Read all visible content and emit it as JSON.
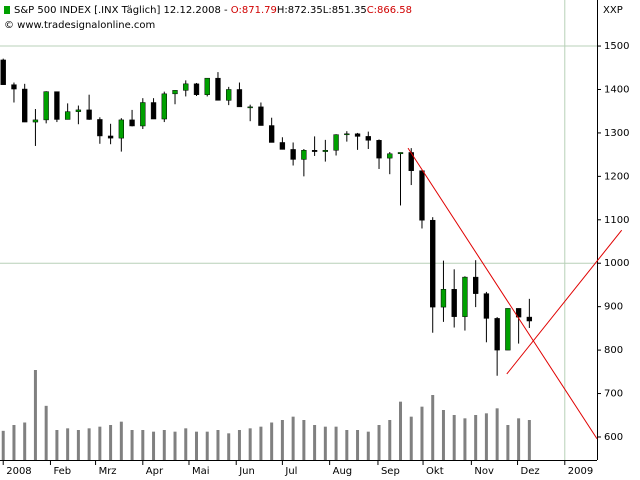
{
  "chart_data": {
    "type": "candlestick",
    "header": {
      "symbol": "S&P 500 INDEX [.INX  Täglich]",
      "date": "12.12.2008",
      "separator": "-",
      "ohlc": [
        {
          "text": "O:871.79",
          "color": "#d00000"
        },
        {
          "text": "H:872.35",
          "color": "#000000"
        },
        {
          "text": "L:851.35",
          "color": "#000000"
        },
        {
          "text": "C:866.58",
          "color": "#d00000"
        }
      ]
    },
    "copyright": "© www.tradesignalonline.com",
    "axis_label": "XXP",
    "x": [
      0,
      1,
      2,
      3,
      4,
      5,
      6,
      7,
      8,
      9,
      10,
      11,
      12,
      13,
      14,
      15,
      16,
      17,
      18,
      19,
      20,
      21,
      22,
      23,
      24,
      25,
      26,
      27,
      28,
      29,
      30,
      31,
      32,
      33,
      34,
      35,
      36,
      37,
      38,
      39,
      40,
      41,
      42,
      43,
      44,
      45,
      46,
      47,
      48,
      49
    ],
    "open": [
      1468,
      1411,
      1401,
      1325,
      1330,
      1395,
      1331,
      1349,
      1353,
      1331,
      1293,
      1288,
      1330,
      1316,
      1370,
      1332,
      1390,
      1398,
      1413,
      1388,
      1426,
      1375,
      1400,
      1360,
      1360,
      1317,
      1278,
      1262,
      1239,
      1260,
      1257,
      1260,
      1296,
      1298,
      1292,
      1283,
      1242,
      1252,
      1255,
      1213,
      1099,
      899,
      940,
      877,
      968,
      930,
      873,
      800,
      896,
      876
    ],
    "high": [
      1471,
      1416,
      1413,
      1355,
      1396,
      1395,
      1368,
      1363,
      1388,
      1336,
      1321,
      1334,
      1353,
      1380,
      1380,
      1395,
      1398,
      1421,
      1415,
      1426,
      1440,
      1406,
      1416,
      1365,
      1370,
      1335,
      1290,
      1278,
      1263,
      1292,
      1284,
      1297,
      1304,
      1300,
      1303,
      1285,
      1256,
      1255,
      1265,
      1214,
      1106,
      1006,
      986,
      970,
      1007,
      934,
      876,
      896,
      896,
      918
    ],
    "low": [
      1411,
      1370,
      1325,
      1270,
      1322,
      1325,
      1331,
      1320,
      1330,
      1275,
      1274,
      1257,
      1315,
      1309,
      1332,
      1325,
      1366,
      1384,
      1385,
      1384,
      1375,
      1364,
      1360,
      1327,
      1317,
      1278,
      1262,
      1225,
      1200,
      1247,
      1234,
      1248,
      1280,
      1261,
      1263,
      1217,
      1205,
      1133,
      1180,
      1080,
      840,
      865,
      852,
      845,
      899,
      818,
      741,
      800,
      815,
      851
    ],
    "close": [
      1411,
      1401,
      1325,
      1330,
      1395,
      1331,
      1349,
      1353,
      1331,
      1293,
      1288,
      1330,
      1316,
      1370,
      1332,
      1390,
      1398,
      1413,
      1388,
      1426,
      1375,
      1400,
      1360,
      1360,
      1317,
      1278,
      1262,
      1239,
      1260,
      1257,
      1260,
      1296,
      1298,
      1292,
      1283,
      1242,
      1252,
      1255,
      1213,
      1099,
      899,
      940,
      877,
      968,
      930,
      873,
      800,
      896,
      876,
      867
    ],
    "volume": [
      3.5,
      4.2,
      4.5,
      10.8,
      6.5,
      3.6,
      3.8,
      3.6,
      3.8,
      4.0,
      4.2,
      4.6,
      3.6,
      3.6,
      3.4,
      3.6,
      3.4,
      3.8,
      3.4,
      3.4,
      3.6,
      3.2,
      3.6,
      3.8,
      4.0,
      4.5,
      4.8,
      5.2,
      4.8,
      4.2,
      4.0,
      4.0,
      3.6,
      3.6,
      3.4,
      4.2,
      4.8,
      7.0,
      5.2,
      6.4,
      7.8,
      6.0,
      5.4,
      5.0,
      5.4,
      5.6,
      6.2,
      4.2,
      5.0,
      4.8
    ],
    "up_color": "#00a000",
    "down_color": "#000000",
    "volume_color": "#808080",
    "xlim": [
      -0.3,
      55.3
    ],
    "xticks": [
      {
        "value": 0,
        "label": "2008"
      },
      {
        "value": 4.4,
        "label": "Feb"
      },
      {
        "value": 8.6,
        "label": "Mrz"
      },
      {
        "value": 13,
        "label": "Apr"
      },
      {
        "value": 17.3,
        "label": "Mai"
      },
      {
        "value": 21.7,
        "label": "Jun"
      },
      {
        "value": 26,
        "label": "Jul"
      },
      {
        "value": 30.4,
        "label": "Aug"
      },
      {
        "value": 34.9,
        "label": "Sep"
      },
      {
        "value": 39.1,
        "label": "Okt"
      },
      {
        "value": 43.6,
        "label": "Nov"
      },
      {
        "value": 47.9,
        "label": "Dez"
      },
      {
        "value": 52.3,
        "label": "2009"
      }
    ],
    "ylim": [
      547,
      1606
    ],
    "yticks": [
      600,
      700,
      800,
      900,
      1000,
      1100,
      1200,
      1300,
      1400,
      1500
    ],
    "volume_ylim": [
      0,
      12
    ],
    "y_gridlines": [
      1000,
      1500
    ],
    "x_gridlines": [
      52.3
    ],
    "trendlines": [
      {
        "x": [
          37.7,
          55.3
        ],
        "y": [
          1265,
          596
        ],
        "color": "#e00000"
      },
      {
        "x": [
          46.9,
          57.6
        ],
        "y": [
          745,
          1076
        ],
        "color": "#e00000"
      }
    ]
  }
}
